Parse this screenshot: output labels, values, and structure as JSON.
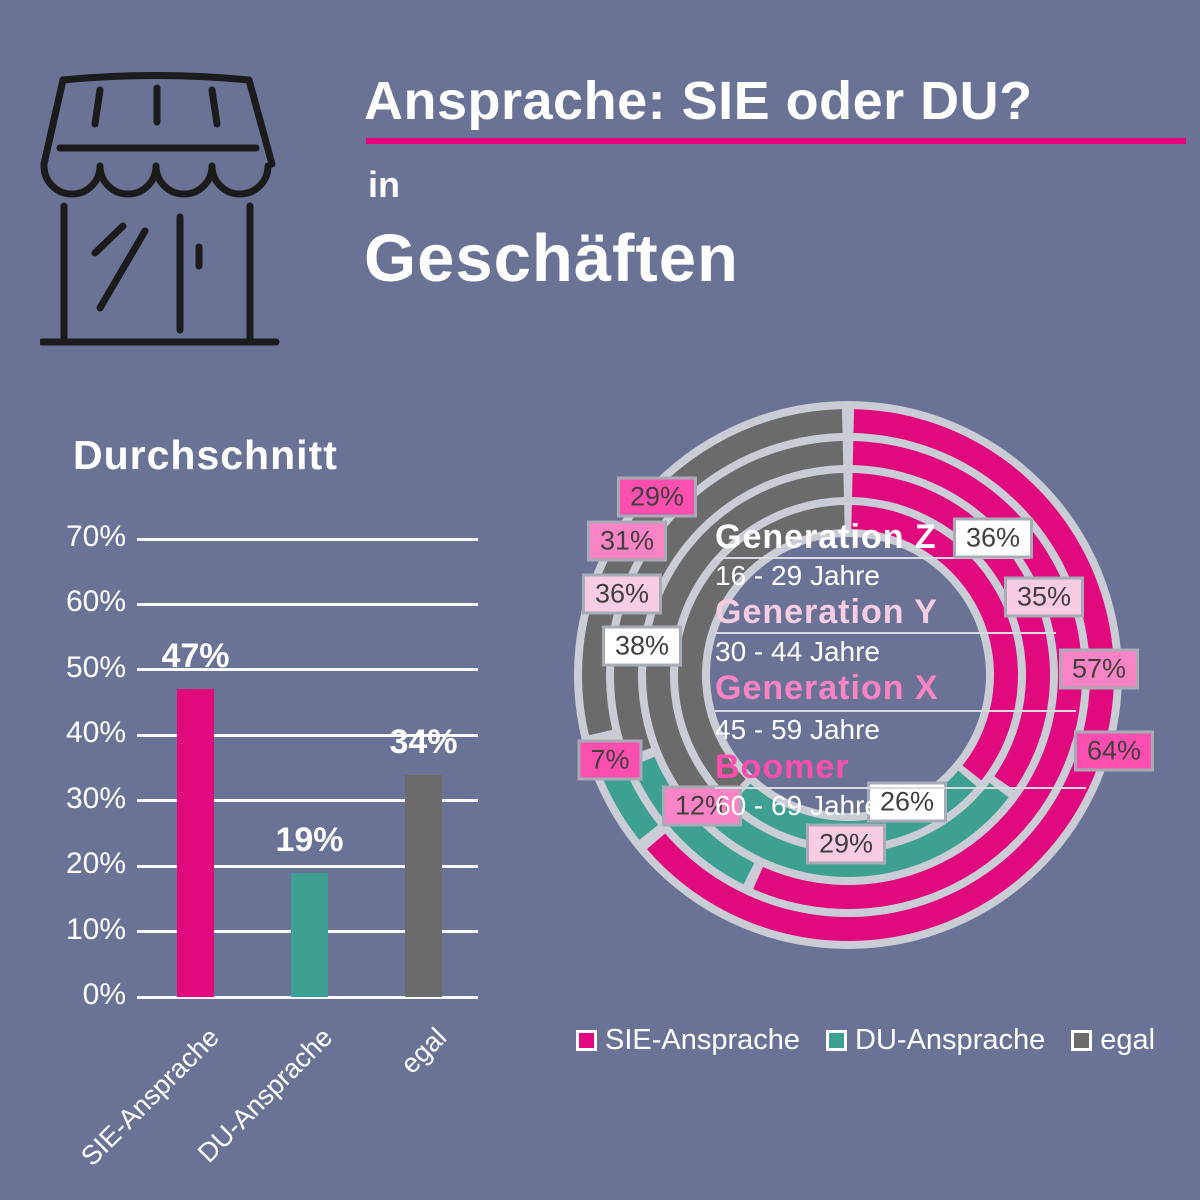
{
  "header": {
    "title": "Ansprache: SIE oder DU?",
    "connector": "in",
    "context": "Geschäften"
  },
  "colors": {
    "background": "#6A7396",
    "sie": "#E0097D",
    "du": "#3EA093",
    "egal": "#6B6B6B",
    "ring_base": "#CACDD5",
    "underline": "#E6007E",
    "leader_line": "#D8DAE0",
    "label_text": "#3F3F3F",
    "label_border": "#A7ABB5",
    "icon": "#1B1B1B",
    "text": "#FFFFFF"
  },
  "legend": [
    {
      "label": "SIE-Ansprache",
      "color_key": "sie"
    },
    {
      "label": "DU-Ansprache",
      "color_key": "du"
    },
    {
      "label": "egal",
      "color_key": "egal"
    }
  ],
  "chart_data": [
    {
      "type": "bar",
      "title": "Durchschnitt",
      "categories": [
        "SIE-Ansprache",
        "DU-Ansprache",
        "egal"
      ],
      "values": [
        47,
        19,
        34
      ],
      "value_labels": [
        "47%",
        "19%",
        "34%"
      ],
      "series_color_keys": [
        "sie",
        "du",
        "egal"
      ],
      "y_ticks": [
        "70%",
        "60%",
        "50%",
        "40%",
        "30%",
        "20%",
        "10%",
        "0%"
      ],
      "ylim": [
        0,
        70
      ],
      "grid": true,
      "unit": "%"
    },
    {
      "type": "donut",
      "description": "Four concentric rings, one per generation (outermost to innermost: Boomer, Generation X, Generation Y, Generation Z). Each ring is split clockwise from 12 o'clock into SIE / DU / egal shares.",
      "rings_outer_to_inner": [
        "Boomer",
        "Generation X",
        "Generation Y",
        "Generation Z"
      ],
      "segment_order": [
        "sie",
        "du",
        "egal"
      ],
      "generations": [
        {
          "name": "Generation Z",
          "age": "16 - 29 Jahre",
          "label_color": "#FFFFFF",
          "sie": 36,
          "du": 26,
          "egal": 38
        },
        {
          "name": "Generation Y",
          "age": "30 - 44 Jahre",
          "label_color": "#F8CCE3",
          "sie": 35,
          "du": 29,
          "egal": 36
        },
        {
          "name": "Generation X",
          "age": "45 - 59 Jahre",
          "label_color": "#F884C6",
          "sie": 57,
          "du": 12,
          "egal": 31
        },
        {
          "name": "Boomer",
          "age": "60 - 69 Jahre",
          "label_color": "#FB4FAF",
          "sie": 64,
          "du": 7,
          "egal": 29
        }
      ]
    }
  ]
}
